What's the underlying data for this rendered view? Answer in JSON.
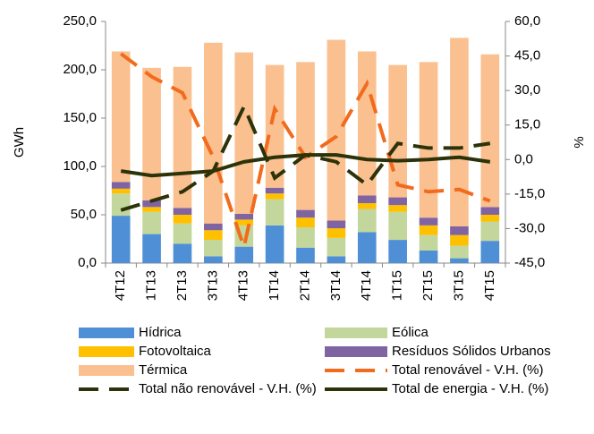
{
  "chart_data": {
    "type": "bar",
    "y_label": "GWh",
    "y2_label": "%",
    "categories": [
      "4T12",
      "1T13",
      "2T13",
      "3T13",
      "4T13",
      "1T14",
      "2T14",
      "3T14",
      "4T14",
      "1T15",
      "2T15",
      "3T15",
      "4T15"
    ],
    "ylim": [
      0,
      250
    ],
    "yticks": [
      {
        "value": 0,
        "label": "0,0"
      },
      {
        "value": 50,
        "label": "50,0"
      },
      {
        "value": 100,
        "label": "100,0"
      },
      {
        "value": 150,
        "label": "150,0"
      },
      {
        "value": 200,
        "label": "200,0"
      },
      {
        "value": 250,
        "label": "250,0"
      }
    ],
    "y2lim": [
      -45,
      60
    ],
    "y2ticks": [
      {
        "value": -45,
        "label": "-45,0"
      },
      {
        "value": -30,
        "label": "-30,0"
      },
      {
        "value": -15,
        "label": "-15,0"
      },
      {
        "value": 0,
        "label": "0,0"
      },
      {
        "value": 15,
        "label": "15,0"
      },
      {
        "value": 30,
        "label": "30,0"
      },
      {
        "value": 45,
        "label": "45,0"
      },
      {
        "value": 60,
        "label": "60,0"
      }
    ],
    "series": [
      {
        "name": "Hídrica",
        "color": "#4f8fd6",
        "values": [
          49,
          30,
          20,
          7,
          17,
          39,
          16,
          7,
          32,
          24,
          13,
          5,
          23
        ]
      },
      {
        "name": "Eólica",
        "color": "#c3d69b",
        "values": [
          23,
          23,
          21,
          17,
          22,
          27,
          21,
          19,
          24,
          29,
          16,
          13,
          20
        ]
      },
      {
        "name": "Fotovoltaica",
        "color": "#ffc000",
        "values": [
          5,
          5,
          9,
          10,
          6,
          6,
          10,
          10,
          6,
          7,
          10,
          11,
          7
        ]
      },
      {
        "name": "Resíduos Sólidos Urbanos",
        "color": "#8064a2",
        "values": [
          7,
          7,
          7,
          7,
          6,
          6,
          8,
          8,
          8,
          8,
          8,
          9,
          8
        ]
      },
      {
        "name": "Térmica",
        "color": "#fac090",
        "values": [
          135,
          137,
          146,
          187,
          167,
          127,
          153,
          187,
          149,
          137,
          161,
          195,
          158
        ]
      },
      {
        "name": "Total renovável - V.H. (%)",
        "color": "#f26b1d",
        "type": "line",
        "dash": true,
        "axis": "y2",
        "values": [
          46,
          36,
          29,
          1,
          -38,
          22,
          1,
          10,
          33,
          -11,
          -14,
          -13,
          -18
        ]
      },
      {
        "name": "Total não renovável - V.H. (%)",
        "color": "#2d3308",
        "type": "line",
        "dash": true,
        "axis": "y2",
        "values": [
          -22,
          -18,
          -14,
          -5,
          23,
          -8,
          2,
          -1,
          -11,
          7,
          5,
          5,
          7
        ]
      },
      {
        "name": "Total de energia - V.H. (%)",
        "color": "#2d3308",
        "type": "line",
        "dash": false,
        "axis": "y2",
        "values": [
          -5,
          -7,
          -6,
          -5,
          -1,
          1,
          2,
          2,
          0,
          -0.5,
          0,
          1,
          -1
        ]
      }
    ]
  }
}
